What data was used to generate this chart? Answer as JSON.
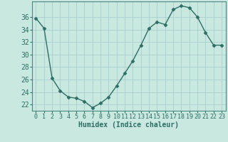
{
  "x": [
    0,
    1,
    2,
    3,
    4,
    5,
    6,
    7,
    8,
    9,
    10,
    11,
    12,
    13,
    14,
    15,
    16,
    17,
    18,
    19,
    20,
    21,
    22,
    23
  ],
  "y": [
    35.8,
    34.2,
    26.2,
    24.2,
    23.2,
    23.0,
    22.5,
    21.5,
    22.2,
    23.2,
    25.0,
    27.0,
    29.0,
    31.5,
    34.2,
    35.2,
    34.8,
    37.2,
    37.8,
    37.5,
    36.0,
    33.5,
    31.5,
    31.5
  ],
  "line_color": "#2e6e64",
  "marker": "D",
  "marker_size": 2.5,
  "marker_lw": 0.5,
  "line_width": 1.0,
  "bg_color": "#c8e8e0",
  "grid_color": "#aacece",
  "xlabel": "Humidex (Indice chaleur)",
  "xlim": [
    -0.5,
    23.5
  ],
  "ylim": [
    21.0,
    38.5
  ],
  "yticks": [
    22,
    24,
    26,
    28,
    30,
    32,
    34,
    36
  ],
  "xticks": [
    0,
    1,
    2,
    3,
    4,
    5,
    6,
    7,
    8,
    9,
    10,
    11,
    12,
    13,
    14,
    15,
    16,
    17,
    18,
    19,
    20,
    21,
    22,
    23
  ],
  "xlabel_fontsize": 7,
  "ytick_fontsize": 7,
  "xtick_fontsize": 6,
  "spine_color": "#4a8a80"
}
